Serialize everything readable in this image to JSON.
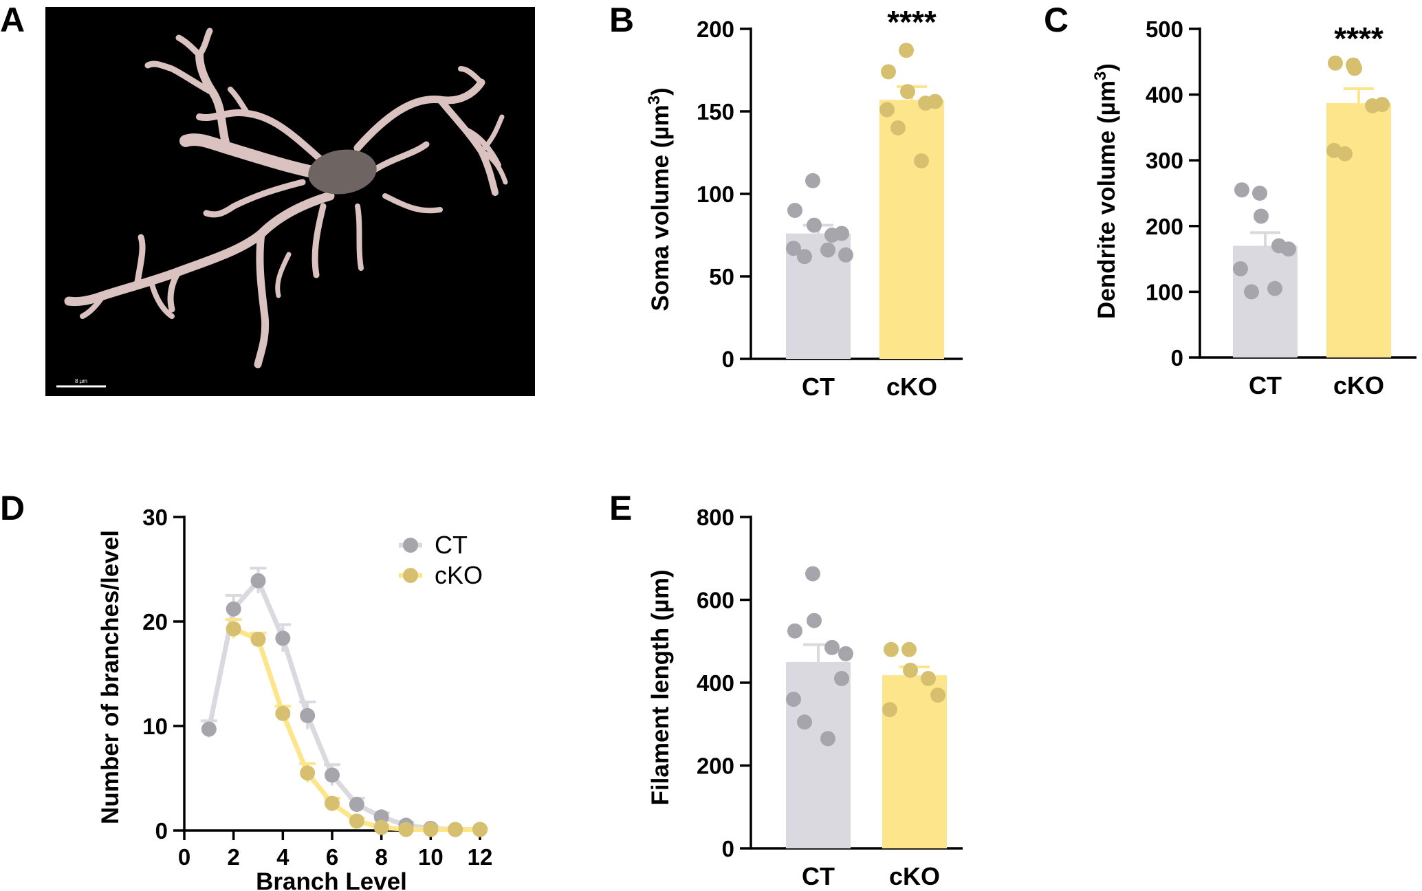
{
  "panel_labels": {
    "a": "A",
    "b": "B",
    "c": "C",
    "d": "D",
    "e": "E"
  },
  "image_panel": {
    "scale_bar_label": "8 µm",
    "background": "#000000",
    "cell_color": "#d9c2c0",
    "soma_color": "#6e6563"
  },
  "colors": {
    "ct": "#d9d9df",
    "ct_dot": "#a5a5ab",
    "cko": "#fde58c",
    "cko_dot": "#d6c070"
  },
  "chart_data": [
    {
      "id": "B",
      "type": "bar",
      "categories": [
        "CT",
        "cKO"
      ],
      "values": [
        76,
        157
      ],
      "sem": [
        5,
        8
      ],
      "points": [
        [
          108,
          90,
          81,
          75,
          76,
          67,
          62,
          66,
          63
        ],
        [
          187,
          174,
          162,
          155,
          156,
          151,
          140,
          120
        ]
      ],
      "ylabel_main": "Soma volume (µm",
      "ylabel_sup": "3",
      "ylabel_end": ")",
      "ylim": [
        0,
        200
      ],
      "yticks": [
        0,
        50,
        100,
        150,
        200
      ],
      "significance": "****"
    },
    {
      "id": "C",
      "type": "bar",
      "categories": [
        "CT",
        "cKO"
      ],
      "values": [
        170,
        387
      ],
      "sem": [
        20,
        22
      ],
      "points": [
        [
          250,
          255,
          215,
          170,
          165,
          135,
          100,
          105
        ],
        [
          445,
          448,
          440,
          383,
          385,
          315,
          310
        ]
      ],
      "ylabel_main": "Dendrite volume (µm",
      "ylabel_sup": "3",
      "ylabel_end": ")",
      "ylim": [
        0,
        500
      ],
      "yticks": [
        0,
        100,
        200,
        300,
        400,
        500
      ],
      "significance": "****"
    },
    {
      "id": "D",
      "type": "line",
      "x": [
        1,
        2,
        3,
        4,
        5,
        6,
        7,
        8,
        9,
        10,
        11,
        12
      ],
      "series": [
        {
          "name": "CT",
          "values": [
            9.7,
            21.2,
            23.9,
            18.4,
            11.0,
            5.3,
            2.5,
            1.3,
            0.5,
            0.2,
            0.1,
            0.1
          ],
          "errors": [
            0.8,
            1.3,
            1.2,
            1.3,
            1.3,
            1.0,
            0.6,
            0.4,
            0.3,
            0.2,
            0.1,
            0.1
          ]
        },
        {
          "name": "cKO",
          "values": [
            null,
            19.3,
            18.3,
            11.2,
            5.5,
            2.6,
            0.9,
            0.3,
            0.1,
            0.1,
            0.1,
            0.1
          ],
          "errors": [
            null,
            0.9,
            0.6,
            0.7,
            0.9,
            0.5,
            0.3,
            0.2,
            0.1,
            0.1,
            0.1,
            0.1
          ]
        }
      ],
      "xlabel": "Branch Level",
      "ylabel": "Number of branches/level",
      "xlim": [
        0,
        12
      ],
      "xticks": [
        0,
        2,
        4,
        6,
        8,
        10,
        12
      ],
      "ylim": [
        0,
        30
      ],
      "yticks": [
        0,
        10,
        20,
        30
      ],
      "legend": "top-right"
    },
    {
      "id": "E",
      "type": "bar",
      "categories": [
        "CT",
        "cKO"
      ],
      "values": [
        450,
        418
      ],
      "sem": [
        42,
        20
      ],
      "points": [
        [
          663,
          525,
          550,
          485,
          410,
          360,
          305,
          265,
          470
        ],
        [
          480,
          480,
          430,
          410,
          370,
          335
        ]
      ],
      "ylabel": "Filament length (µm)",
      "ylim": [
        0,
        800
      ],
      "yticks": [
        0,
        200,
        400,
        600,
        800
      ]
    }
  ]
}
